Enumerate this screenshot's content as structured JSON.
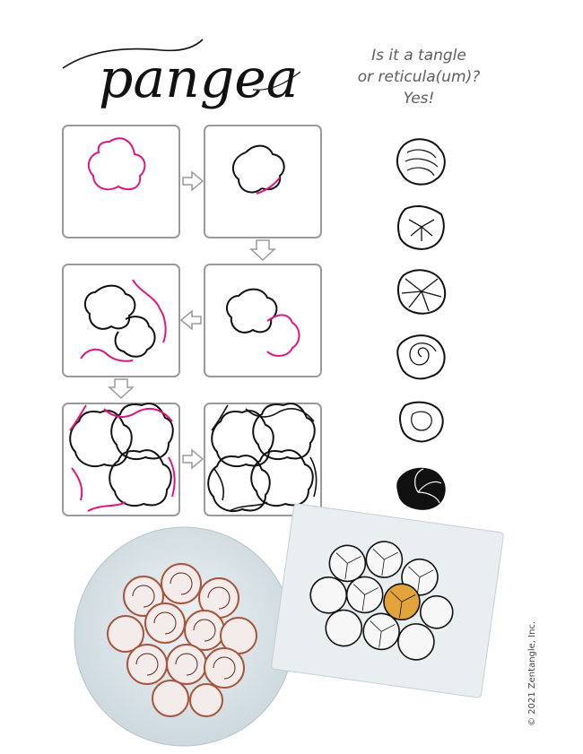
{
  "title": "pangea",
  "tagline": {
    "line1": "Is it a tangle",
    "line2": "or reticula(um)?",
    "line3": "Yes!"
  },
  "copyright": "© 2021 Zentangle, Inc.",
  "colors": {
    "highlight_stroke": "#e0157f",
    "ink": "#111111",
    "tile_border": "#9a9a9a",
    "tagline_text": "#5e5e5e",
    "circle_tile_bg": "#dbe4e8",
    "circle_tile_accent": "#a7543c",
    "rect_tile_bg": "#e9eef0",
    "rect_tile_accent": "#e2a43a"
  },
  "icons": {
    "step_arrows": "right-arrow-icon, down-arrow-icon, left-arrow-icon"
  }
}
